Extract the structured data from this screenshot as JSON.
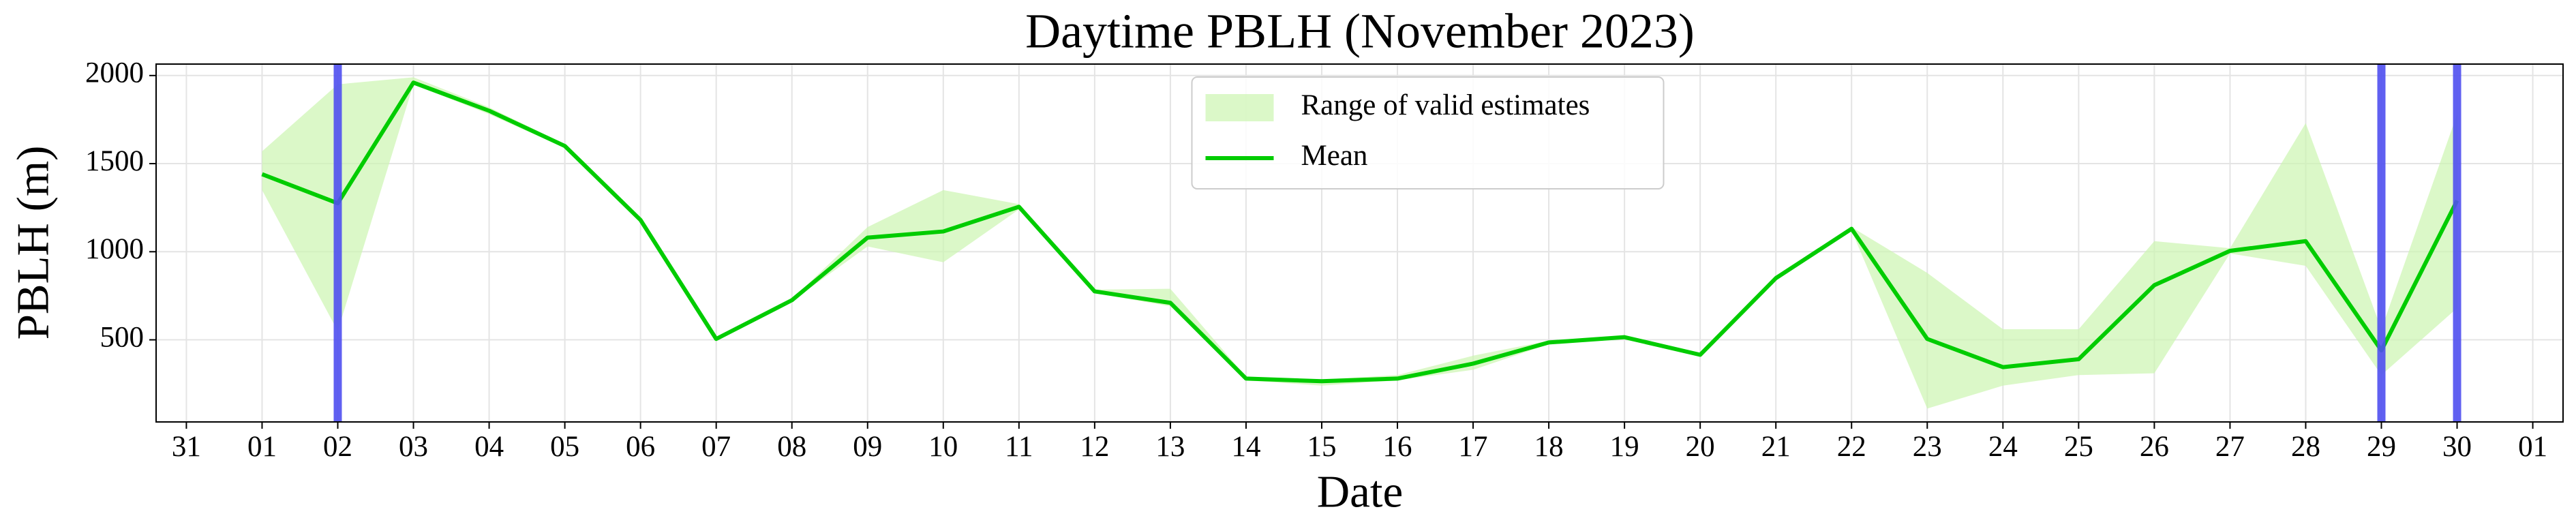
{
  "chart_data": {
    "type": "line",
    "title": "Daytime PBLH (November 2023)",
    "x_label": "Date",
    "y_label": "PBLH (m)",
    "categories": [
      "31",
      "01",
      "02",
      "03",
      "04",
      "05",
      "06",
      "07",
      "08",
      "09",
      "10",
      "11",
      "12",
      "13",
      "14",
      "15",
      "16",
      "17",
      "18",
      "19",
      "20",
      "21",
      "22",
      "23",
      "24",
      "25",
      "26",
      "27",
      "28",
      "29",
      "30",
      "01"
    ],
    "series": [
      {
        "name": "Range of valid estimates",
        "type": "band",
        "color": "#ccf5b0",
        "lower": [
          null,
          1350,
          550,
          1950,
          1780,
          1590,
          1170,
          500,
          720,
          1030,
          940,
          1240,
          765,
          690,
          270,
          240,
          270,
          330,
          475,
          505,
          405,
          840,
          1120,
          110,
          240,
          300,
          310,
          990,
          920,
          300,
          680,
          null
        ],
        "upper": [
          null,
          1570,
          1950,
          1990,
          1820,
          1610,
          1190,
          510,
          730,
          1140,
          1350,
          1270,
          785,
          790,
          290,
          275,
          300,
          410,
          495,
          520,
          420,
          860,
          1140,
          880,
          560,
          560,
          1060,
          1020,
          1730,
          560,
          1780,
          null
        ]
      },
      {
        "name": "Mean",
        "type": "line",
        "color": "#00cc00",
        "values": [
          null,
          1440,
          1275,
          1960,
          1800,
          1600,
          1180,
          505,
          725,
          1080,
          1115,
          1255,
          775,
          710,
          280,
          265,
          280,
          365,
          485,
          515,
          415,
          850,
          1130,
          505,
          345,
          390,
          810,
          1005,
          1060,
          440,
          1290,
          null
        ]
      }
    ],
    "highlight_indices": [
      2,
      29,
      30
    ],
    "highlight_color": "#4f4ff0",
    "ylim": [
      34,
      2065
    ],
    "yticks": [
      500,
      1000,
      1500,
      2000
    ],
    "grid": true,
    "legend": "upper center"
  }
}
